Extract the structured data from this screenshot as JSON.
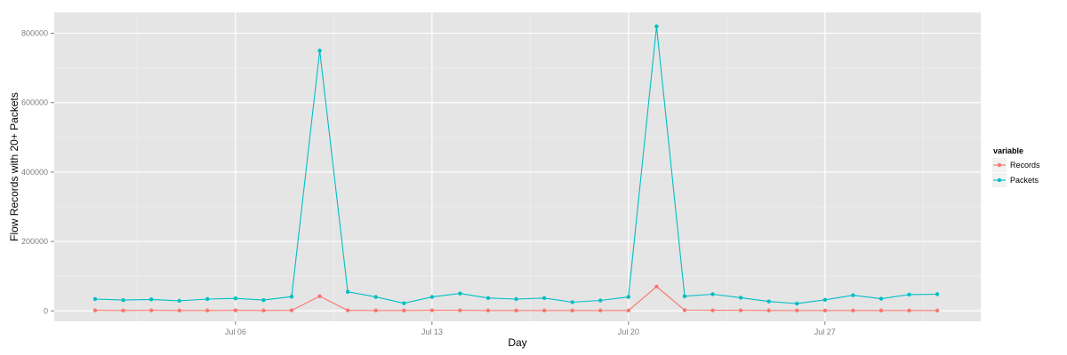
{
  "chart_data": {
    "type": "line",
    "xlabel": "Day",
    "ylabel": "Flow Records with 20+ Packets",
    "x": [
      "Jul 01",
      "Jul 02",
      "Jul 03",
      "Jul 04",
      "Jul 05",
      "Jul 06",
      "Jul 07",
      "Jul 08",
      "Jul 09",
      "Jul 10",
      "Jul 11",
      "Jul 12",
      "Jul 13",
      "Jul 14",
      "Jul 15",
      "Jul 16",
      "Jul 17",
      "Jul 18",
      "Jul 19",
      "Jul 20",
      "Jul 21",
      "Jul 22",
      "Jul 23",
      "Jul 24",
      "Jul 25",
      "Jul 26",
      "Jul 27",
      "Jul 28",
      "Jul 29",
      "Jul 30",
      "Jul 31"
    ],
    "x_ticks": [
      "Jul 06",
      "Jul 13",
      "Jul 20",
      "Jul 27"
    ],
    "y_ticks": [
      0,
      200000,
      400000,
      600000,
      800000
    ],
    "ylim": [
      -30000,
      860000
    ],
    "grid": true,
    "legend": {
      "title": "variable",
      "position": "right"
    },
    "series": [
      {
        "name": "Records",
        "color": "#f8766d",
        "values": [
          1500,
          1000,
          1500,
          1000,
          1000,
          1500,
          1000,
          1500,
          42000,
          1500,
          1000,
          1000,
          1500,
          1500,
          1000,
          1000,
          1000,
          1000,
          1000,
          1000,
          70000,
          2000,
          1500,
          1500,
          1000,
          1000,
          1000,
          1000,
          1000,
          1000,
          1000
        ]
      },
      {
        "name": "Packets",
        "color": "#00bfc4",
        "values": [
          34000,
          31000,
          33000,
          29000,
          34000,
          36000,
          31000,
          41000,
          750000,
          55000,
          40000,
          22000,
          40000,
          50000,
          37000,
          34000,
          37000,
          25000,
          30000,
          40000,
          820000,
          42000,
          48000,
          38000,
          27000,
          21000,
          32000,
          45000,
          35000,
          47000,
          48000
        ]
      }
    ]
  }
}
